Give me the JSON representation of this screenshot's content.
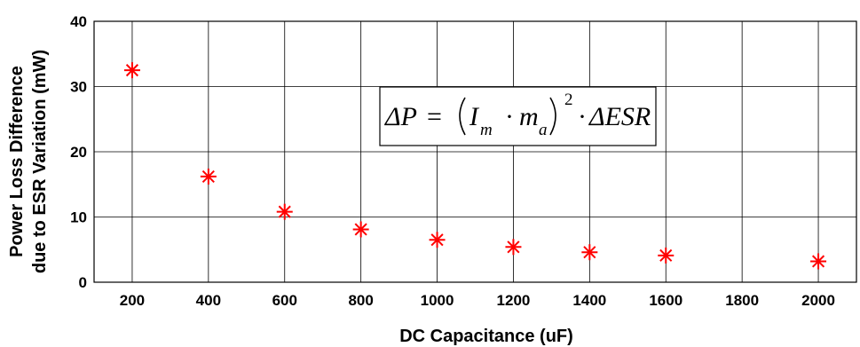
{
  "chart_data": {
    "type": "scatter",
    "x": [
      200,
      400,
      600,
      800,
      1000,
      1200,
      1400,
      1600,
      2000
    ],
    "y": [
      32.5,
      16.2,
      10.8,
      8.1,
      6.5,
      5.4,
      4.6,
      4.1,
      3.2
    ],
    "marker": "asterisk",
    "marker_color": "#ff0000",
    "xlabel": "DC Capacitance (uF)",
    "ylabel_line1": "Power Loss Difference",
    "ylabel_line2": "due to ESR Variation (mW)",
    "xlim": [
      100,
      2100
    ],
    "ylim": [
      0,
      40
    ],
    "xticks": [
      "200",
      "400",
      "600",
      "800",
      "1000",
      "1200",
      "1400",
      "1600",
      "1800",
      "2000"
    ],
    "yticks": [
      "0",
      "10",
      "20",
      "30",
      "40"
    ],
    "grid": true,
    "annotation": {
      "lhs": "ΔP",
      "eq": "=",
      "I": "I",
      "I_sub": "m",
      "dot": "·",
      "m": "m",
      "m_sub": "a",
      "power": "2",
      "rhs": "ΔESR"
    }
  }
}
